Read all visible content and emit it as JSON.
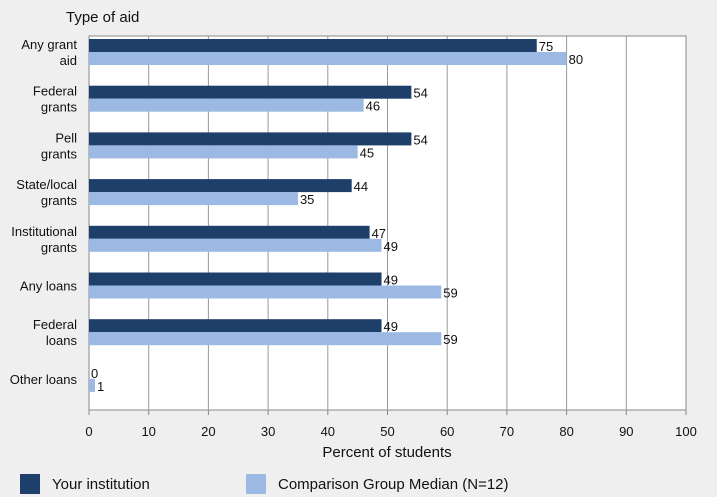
{
  "chart_data": {
    "type": "bar",
    "orientation": "horizontal",
    "title": "",
    "category_axis_title": "Type of aid",
    "xlabel": "Percent of students",
    "xlim": [
      0,
      100
    ],
    "xticks": [
      0,
      10,
      20,
      30,
      40,
      50,
      60,
      70,
      80,
      90,
      100
    ],
    "grid": "vertical",
    "categories": [
      [
        "Any grant",
        "aid"
      ],
      [
        "Federal",
        "grants"
      ],
      [
        "Pell",
        "grants"
      ],
      [
        "State/local",
        "grants"
      ],
      [
        "Institutional",
        "grants"
      ],
      [
        "Any loans"
      ],
      [
        "Federal",
        "loans"
      ],
      [
        "Other loans"
      ]
    ],
    "series": [
      {
        "name": "Your institution",
        "color": "#1f3f6b",
        "values": [
          75,
          54,
          54,
          44,
          47,
          49,
          49,
          0
        ]
      },
      {
        "name": "Comparison Group Median (N=12)",
        "color": "#9bb9e2",
        "values": [
          80,
          46,
          45,
          35,
          49,
          59,
          59,
          1
        ]
      }
    ],
    "legend_position": "bottom"
  },
  "legend": {
    "institution_label": "Your institution",
    "comparison_label": "Comparison Group Median (N=12)"
  }
}
